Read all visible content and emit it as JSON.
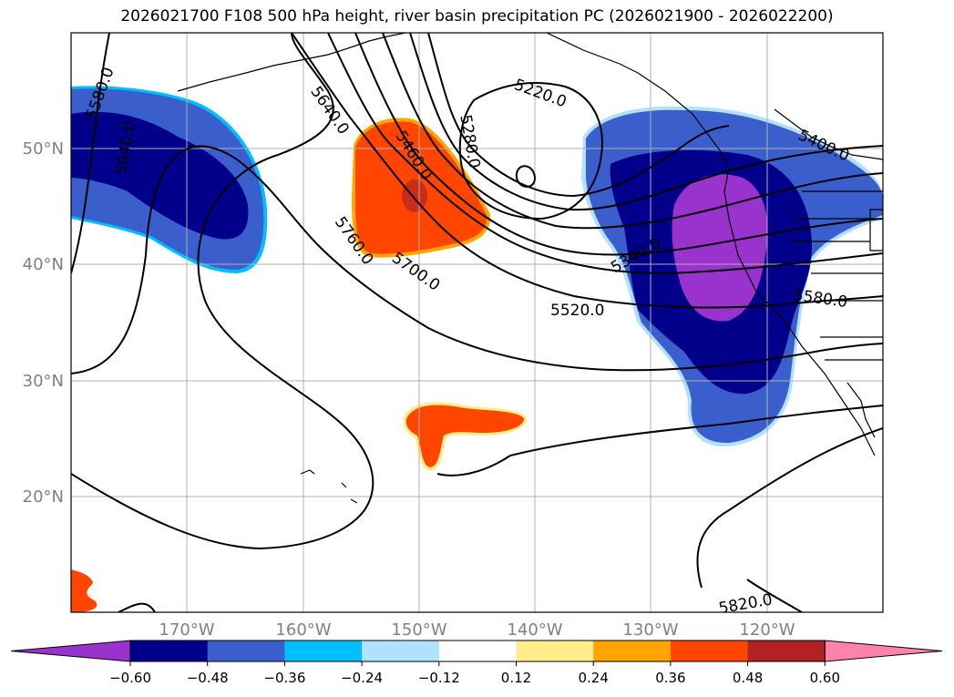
{
  "title": "2026021700 F108 500 hPa height, river basin precipitation PC (2026021900 - 2026022200)",
  "lat_labels": [
    "50°N",
    "40°N",
    "30°N",
    "20°N"
  ],
  "lon_labels": [
    "170°W",
    "160°W",
    "150°W",
    "140°W",
    "130°W",
    "120°W"
  ],
  "contour_labels": [
    "5580.0",
    "5640.0",
    "5640.0",
    "5460.0",
    "5280.0",
    "5220.0",
    "5400.0",
    "5340.0",
    "5520.0",
    "5580.0",
    "5760.0",
    "5700.0",
    "5820.0"
  ],
  "colorbar": {
    "ticks": [
      "−0.60",
      "−0.48",
      "−0.36",
      "−0.24",
      "−0.12",
      "0.12",
      "0.24",
      "0.36",
      "0.48",
      "0.60"
    ],
    "colors": [
      "#9a32cd",
      "#00008b",
      "#3a5fcd",
      "#00bfff",
      "#b0e2ff",
      "#ffffff",
      "#ffec8b",
      "#ffa500",
      "#ff4500",
      "#b22222",
      "#ff82ab"
    ]
  }
}
